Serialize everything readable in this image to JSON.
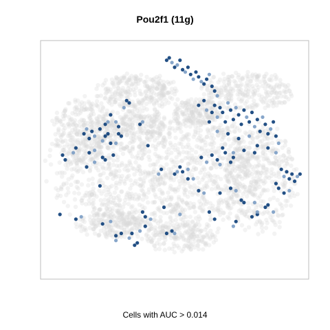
{
  "chart_data": {
    "type": "scatter",
    "title": "Pou2f1 (11g)",
    "xlabel": "Cells with AUC > 0.014",
    "ylabel": "",
    "xlim": [
      0,
      1
    ],
    "ylim": [
      0,
      1
    ],
    "grid": false,
    "colors": {
      "background_cells": "#d9d9d9",
      "high_auc_dark": "#0b3d78",
      "high_auc_mid": "#2c6aa8",
      "high_auc_light": "#7a9cc4",
      "frame": "#bdbdbd"
    },
    "background_clusters": [
      {
        "cx": 0.44,
        "cy": 0.46,
        "rx": 0.4,
        "ry": 0.28,
        "n": 1400
      },
      {
        "cx": 0.16,
        "cy": 0.62,
        "rx": 0.12,
        "ry": 0.14,
        "n": 300
      },
      {
        "cx": 0.36,
        "cy": 0.79,
        "rx": 0.15,
        "ry": 0.07,
        "n": 250
      },
      {
        "cx": 0.58,
        "cy": 0.7,
        "rx": 0.09,
        "ry": 0.06,
        "n": 160
      },
      {
        "cx": 0.82,
        "cy": 0.42,
        "rx": 0.14,
        "ry": 0.23,
        "n": 380
      },
      {
        "cx": 0.77,
        "cy": 0.79,
        "rx": 0.17,
        "ry": 0.08,
        "n": 260
      },
      {
        "cx": 0.52,
        "cy": 0.17,
        "rx": 0.14,
        "ry": 0.06,
        "n": 170
      },
      {
        "cx": 0.26,
        "cy": 0.23,
        "rx": 0.13,
        "ry": 0.06,
        "n": 170
      },
      {
        "cx": 0.36,
        "cy": 0.64,
        "rx": 0.1,
        "ry": 0.06,
        "n": 120
      }
    ],
    "highlighted_points": [
      [
        0.47,
        0.92,
        1
      ],
      [
        0.48,
        0.93,
        1
      ],
      [
        0.49,
        0.91,
        0
      ],
      [
        0.5,
        0.89,
        1
      ],
      [
        0.51,
        0.9,
        0
      ],
      [
        0.52,
        0.92,
        1
      ],
      [
        0.53,
        0.88,
        1
      ],
      [
        0.54,
        0.87,
        0
      ],
      [
        0.55,
        0.89,
        1
      ],
      [
        0.56,
        0.86,
        1
      ],
      [
        0.57,
        0.84,
        0
      ],
      [
        0.58,
        0.87,
        1
      ],
      [
        0.59,
        0.85,
        1
      ],
      [
        0.6,
        0.83,
        0
      ],
      [
        0.61,
        0.82,
        1
      ],
      [
        0.62,
        0.84,
        1
      ],
      [
        0.63,
        0.86,
        0
      ],
      [
        0.64,
        0.81,
        1
      ],
      [
        0.65,
        0.79,
        1
      ],
      [
        0.66,
        0.77,
        0
      ],
      [
        0.59,
        0.73,
        1
      ],
      [
        0.61,
        0.75,
        1
      ],
      [
        0.62,
        0.71,
        0
      ],
      [
        0.64,
        0.7,
        1
      ],
      [
        0.65,
        0.73,
        1
      ],
      [
        0.66,
        0.68,
        0
      ],
      [
        0.67,
        0.72,
        1
      ],
      [
        0.68,
        0.7,
        1
      ],
      [
        0.69,
        0.66,
        1
      ],
      [
        0.7,
        0.74,
        0
      ],
      [
        0.71,
        0.71,
        1
      ],
      [
        0.72,
        0.67,
        1
      ],
      [
        0.73,
        0.72,
        0
      ],
      [
        0.74,
        0.69,
        1
      ],
      [
        0.75,
        0.65,
        1
      ],
      [
        0.76,
        0.71,
        1
      ],
      [
        0.77,
        0.68,
        0
      ],
      [
        0.78,
        0.66,
        1
      ],
      [
        0.79,
        0.7,
        1
      ],
      [
        0.8,
        0.64,
        0
      ],
      [
        0.81,
        0.67,
        1
      ],
      [
        0.82,
        0.62,
        1
      ],
      [
        0.83,
        0.68,
        0
      ],
      [
        0.84,
        0.65,
        1
      ],
      [
        0.85,
        0.61,
        1
      ],
      [
        0.86,
        0.63,
        0
      ],
      [
        0.87,
        0.66,
        1
      ],
      [
        0.88,
        0.6,
        1
      ],
      [
        0.89,
        0.57,
        0
      ],
      [
        0.63,
        0.66,
        1
      ],
      [
        0.66,
        0.62,
        0
      ],
      [
        0.7,
        0.61,
        1
      ],
      [
        0.74,
        0.59,
        1
      ],
      [
        0.78,
        0.6,
        0
      ],
      [
        0.81,
        0.56,
        1
      ],
      [
        0.85,
        0.55,
        1
      ],
      [
        0.68,
        0.55,
        1
      ],
      [
        0.72,
        0.53,
        0
      ],
      [
        0.76,
        0.54,
        1
      ],
      [
        0.8,
        0.53,
        1
      ],
      [
        0.88,
        0.53,
        0
      ],
      [
        0.64,
        0.52,
        1
      ],
      [
        0.66,
        0.5,
        1
      ],
      [
        0.67,
        0.48,
        0
      ],
      [
        0.69,
        0.53,
        1
      ],
      [
        0.71,
        0.49,
        1
      ],
      [
        0.72,
        0.51,
        1
      ],
      [
        0.62,
        0.49,
        0
      ],
      [
        0.6,
        0.51,
        1
      ],
      [
        0.9,
        0.46,
        1
      ],
      [
        0.91,
        0.43,
        0
      ],
      [
        0.92,
        0.45,
        1
      ],
      [
        0.93,
        0.42,
        1
      ],
      [
        0.94,
        0.44,
        1
      ],
      [
        0.95,
        0.41,
        1
      ],
      [
        0.96,
        0.43,
        0
      ],
      [
        0.97,
        0.44,
        1
      ],
      [
        0.89,
        0.38,
        1
      ],
      [
        0.91,
        0.36,
        1
      ],
      [
        0.93,
        0.37,
        0
      ],
      [
        0.88,
        0.4,
        1
      ],
      [
        0.16,
        0.61,
        1
      ],
      [
        0.17,
        0.63,
        0
      ],
      [
        0.18,
        0.59,
        1
      ],
      [
        0.19,
        0.62,
        1
      ],
      [
        0.2,
        0.6,
        0
      ],
      [
        0.22,
        0.63,
        1
      ],
      [
        0.23,
        0.58,
        0
      ],
      [
        0.24,
        0.6,
        1
      ],
      [
        0.25,
        0.61,
        1
      ],
      [
        0.26,
        0.57,
        1
      ],
      [
        0.24,
        0.65,
        1
      ],
      [
        0.25,
        0.66,
        0
      ],
      [
        0.26,
        0.69,
        1
      ],
      [
        0.28,
        0.66,
        0
      ],
      [
        0.29,
        0.61,
        1
      ],
      [
        0.3,
        0.6,
        1
      ],
      [
        0.28,
        0.57,
        0
      ],
      [
        0.18,
        0.53,
        1
      ],
      [
        0.2,
        0.54,
        0
      ],
      [
        0.23,
        0.51,
        1
      ],
      [
        0.24,
        0.5,
        1
      ],
      [
        0.17,
        0.47,
        1
      ],
      [
        0.2,
        0.49,
        0
      ],
      [
        0.27,
        0.52,
        1
      ],
      [
        0.08,
        0.52,
        1
      ],
      [
        0.09,
        0.5,
        1
      ],
      [
        0.12,
        0.53,
        0
      ],
      [
        0.13,
        0.55,
        1
      ],
      [
        0.32,
        0.75,
        1
      ],
      [
        0.33,
        0.74,
        1
      ],
      [
        0.31,
        0.72,
        0
      ],
      [
        0.29,
        0.64,
        1
      ],
      [
        0.37,
        0.65,
        1
      ],
      [
        0.38,
        0.66,
        0
      ],
      [
        0.4,
        0.56,
        1
      ],
      [
        0.44,
        0.44,
        0
      ],
      [
        0.45,
        0.46,
        1
      ],
      [
        0.5,
        0.44,
        1
      ],
      [
        0.51,
        0.45,
        0
      ],
      [
        0.53,
        0.45,
        1
      ],
      [
        0.55,
        0.42,
        1
      ],
      [
        0.57,
        0.42,
        0
      ],
      [
        0.59,
        0.37,
        1
      ],
      [
        0.61,
        0.36,
        0
      ],
      [
        0.67,
        0.36,
        1
      ],
      [
        0.71,
        0.38,
        1
      ],
      [
        0.73,
        0.37,
        0
      ],
      [
        0.75,
        0.33,
        1
      ],
      [
        0.76,
        0.32,
        1
      ],
      [
        0.8,
        0.32,
        0
      ],
      [
        0.81,
        0.27,
        1
      ],
      [
        0.84,
        0.3,
        1
      ],
      [
        0.85,
        0.31,
        1
      ],
      [
        0.87,
        0.28,
        0
      ],
      [
        0.07,
        0.27,
        1
      ],
      [
        0.23,
        0.23,
        1
      ],
      [
        0.26,
        0.24,
        0
      ],
      [
        0.28,
        0.18,
        1
      ],
      [
        0.3,
        0.19,
        1
      ],
      [
        0.33,
        0.17,
        0
      ],
      [
        0.34,
        0.19,
        1
      ],
      [
        0.35,
        0.14,
        1
      ],
      [
        0.37,
        0.2,
        0
      ],
      [
        0.38,
        0.28,
        1
      ],
      [
        0.39,
        0.26,
        1
      ],
      [
        0.41,
        0.25,
        0
      ],
      [
        0.39,
        0.22,
        1
      ],
      [
        0.47,
        0.19,
        1
      ],
      [
        0.49,
        0.2,
        1
      ],
      [
        0.5,
        0.19,
        0
      ],
      [
        0.36,
        0.15,
        1
      ],
      [
        0.28,
        0.16,
        0
      ],
      [
        0.46,
        0.3,
        1
      ],
      [
        0.52,
        0.27,
        0
      ],
      [
        0.63,
        0.28,
        1
      ],
      [
        0.65,
        0.25,
        1
      ],
      [
        0.72,
        0.22,
        0
      ],
      [
        0.73,
        0.24,
        1
      ],
      [
        0.79,
        0.26,
        1
      ],
      [
        0.81,
        0.28,
        0
      ],
      [
        0.13,
        0.25,
        1
      ],
      [
        0.15,
        0.26,
        0
      ],
      [
        0.52,
        0.47,
        1
      ],
      [
        0.55,
        0.46,
        0
      ],
      [
        0.22,
        0.39,
        1
      ]
    ]
  }
}
